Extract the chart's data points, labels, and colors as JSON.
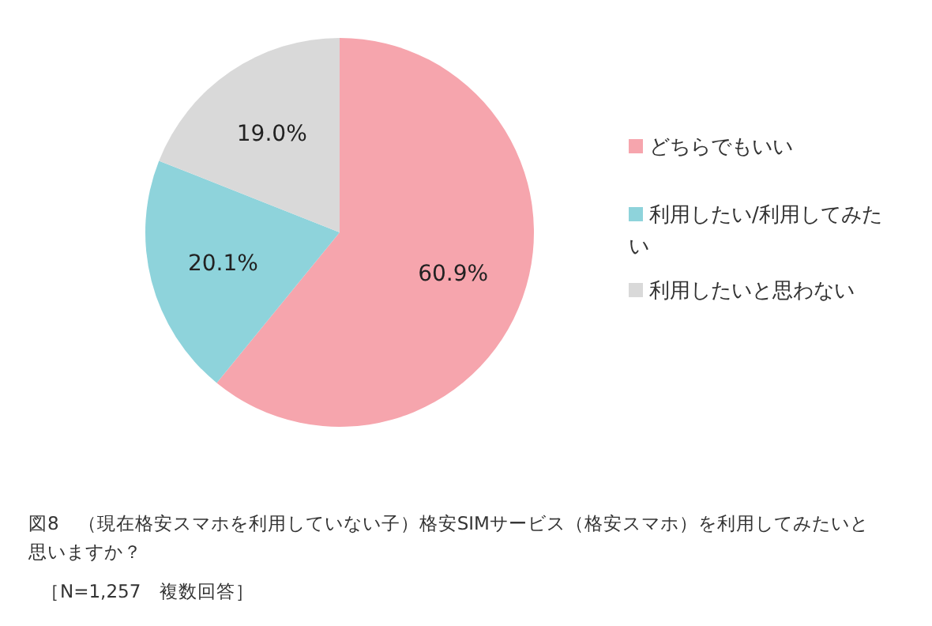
{
  "chart_data": {
    "type": "pie",
    "title": "図8　（現在格安スマホを利用していない子）格安SIMサービス（格安スマホ）を利用してみたいと思いますか？",
    "annotations": [
      "［N=1,257　複数回答］"
    ],
    "categories": [
      "どちらでもいい",
      "利用したい/利用してみたい",
      "利用したいと思わない"
    ],
    "values": [
      60.9,
      20.1,
      19.0
    ],
    "value_labels": [
      "60.9%",
      "20.1%",
      "19.0%"
    ],
    "colors": [
      "#f6a5ad",
      "#8ed3db",
      "#d9d9d9"
    ],
    "legend": "right"
  }
}
